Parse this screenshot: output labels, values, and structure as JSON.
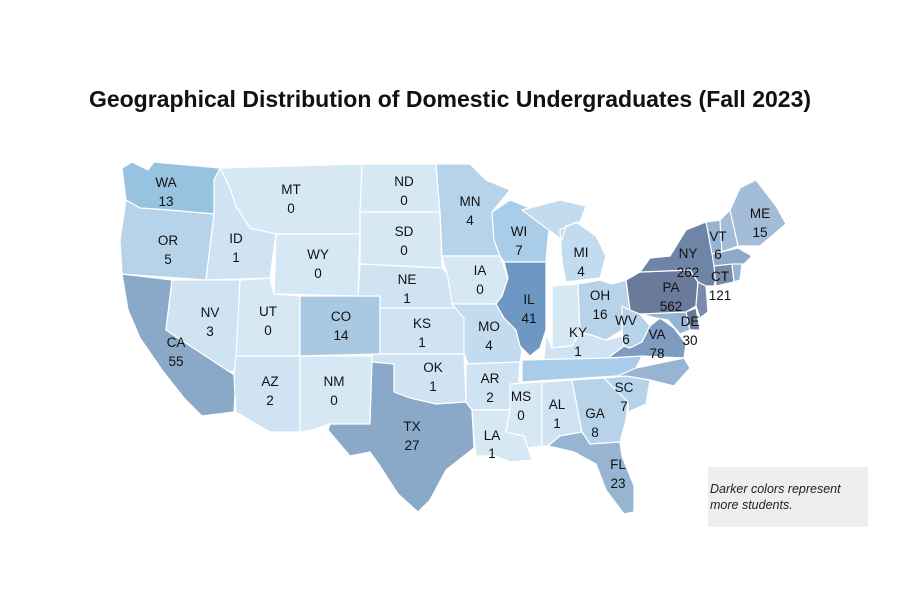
{
  "title": "Geographical Distribution of Domestic Undergraduates (Fall 2023)",
  "legend_note": "Darker colors represent more students.",
  "color_scale": [
    "#d7e8f5",
    "#b7d3ea",
    "#97b5d3",
    "#7a97bf",
    "#6b7a9a"
  ],
  "states": [
    {
      "abbr": "WA",
      "value": "13"
    },
    {
      "abbr": "OR",
      "value": "5"
    },
    {
      "abbr": "CA",
      "value": "55"
    },
    {
      "abbr": "ID",
      "value": "1"
    },
    {
      "abbr": "NV",
      "value": "3"
    },
    {
      "abbr": "MT",
      "value": "0"
    },
    {
      "abbr": "WY",
      "value": "0"
    },
    {
      "abbr": "UT",
      "value": "0"
    },
    {
      "abbr": "AZ",
      "value": "2"
    },
    {
      "abbr": "CO",
      "value": "14"
    },
    {
      "abbr": "NM",
      "value": "0"
    },
    {
      "abbr": "ND",
      "value": "0"
    },
    {
      "abbr": "SD",
      "value": "0"
    },
    {
      "abbr": "NE",
      "value": "1"
    },
    {
      "abbr": "KS",
      "value": "1"
    },
    {
      "abbr": "OK",
      "value": "1"
    },
    {
      "abbr": "TX",
      "value": "27"
    },
    {
      "abbr": "MN",
      "value": "4"
    },
    {
      "abbr": "IA",
      "value": "0"
    },
    {
      "abbr": "MO",
      "value": "4"
    },
    {
      "abbr": "AR",
      "value": "2"
    },
    {
      "abbr": "LA",
      "value": "1"
    },
    {
      "abbr": "WI",
      "value": "7"
    },
    {
      "abbr": "IL",
      "value": "41"
    },
    {
      "abbr": "MI",
      "value": "4"
    },
    {
      "abbr": "MS",
      "value": "0"
    },
    {
      "abbr": "AL",
      "value": "1"
    },
    {
      "abbr": "KY",
      "value": "1"
    },
    {
      "abbr": "OH",
      "value": "16"
    },
    {
      "abbr": "GA",
      "value": "8"
    },
    {
      "abbr": "FL",
      "value": "23"
    },
    {
      "abbr": "SC",
      "value": "7"
    },
    {
      "abbr": "WV",
      "value": "6"
    },
    {
      "abbr": "VA",
      "value": "78"
    },
    {
      "abbr": "PA",
      "value": "562"
    },
    {
      "abbr": "NY",
      "value": "262"
    },
    {
      "abbr": "DE",
      "value": "30"
    },
    {
      "abbr": "VT",
      "value": "6"
    },
    {
      "abbr": "CT",
      "value": "121"
    },
    {
      "abbr": "ME",
      "value": "15"
    }
  ]
}
